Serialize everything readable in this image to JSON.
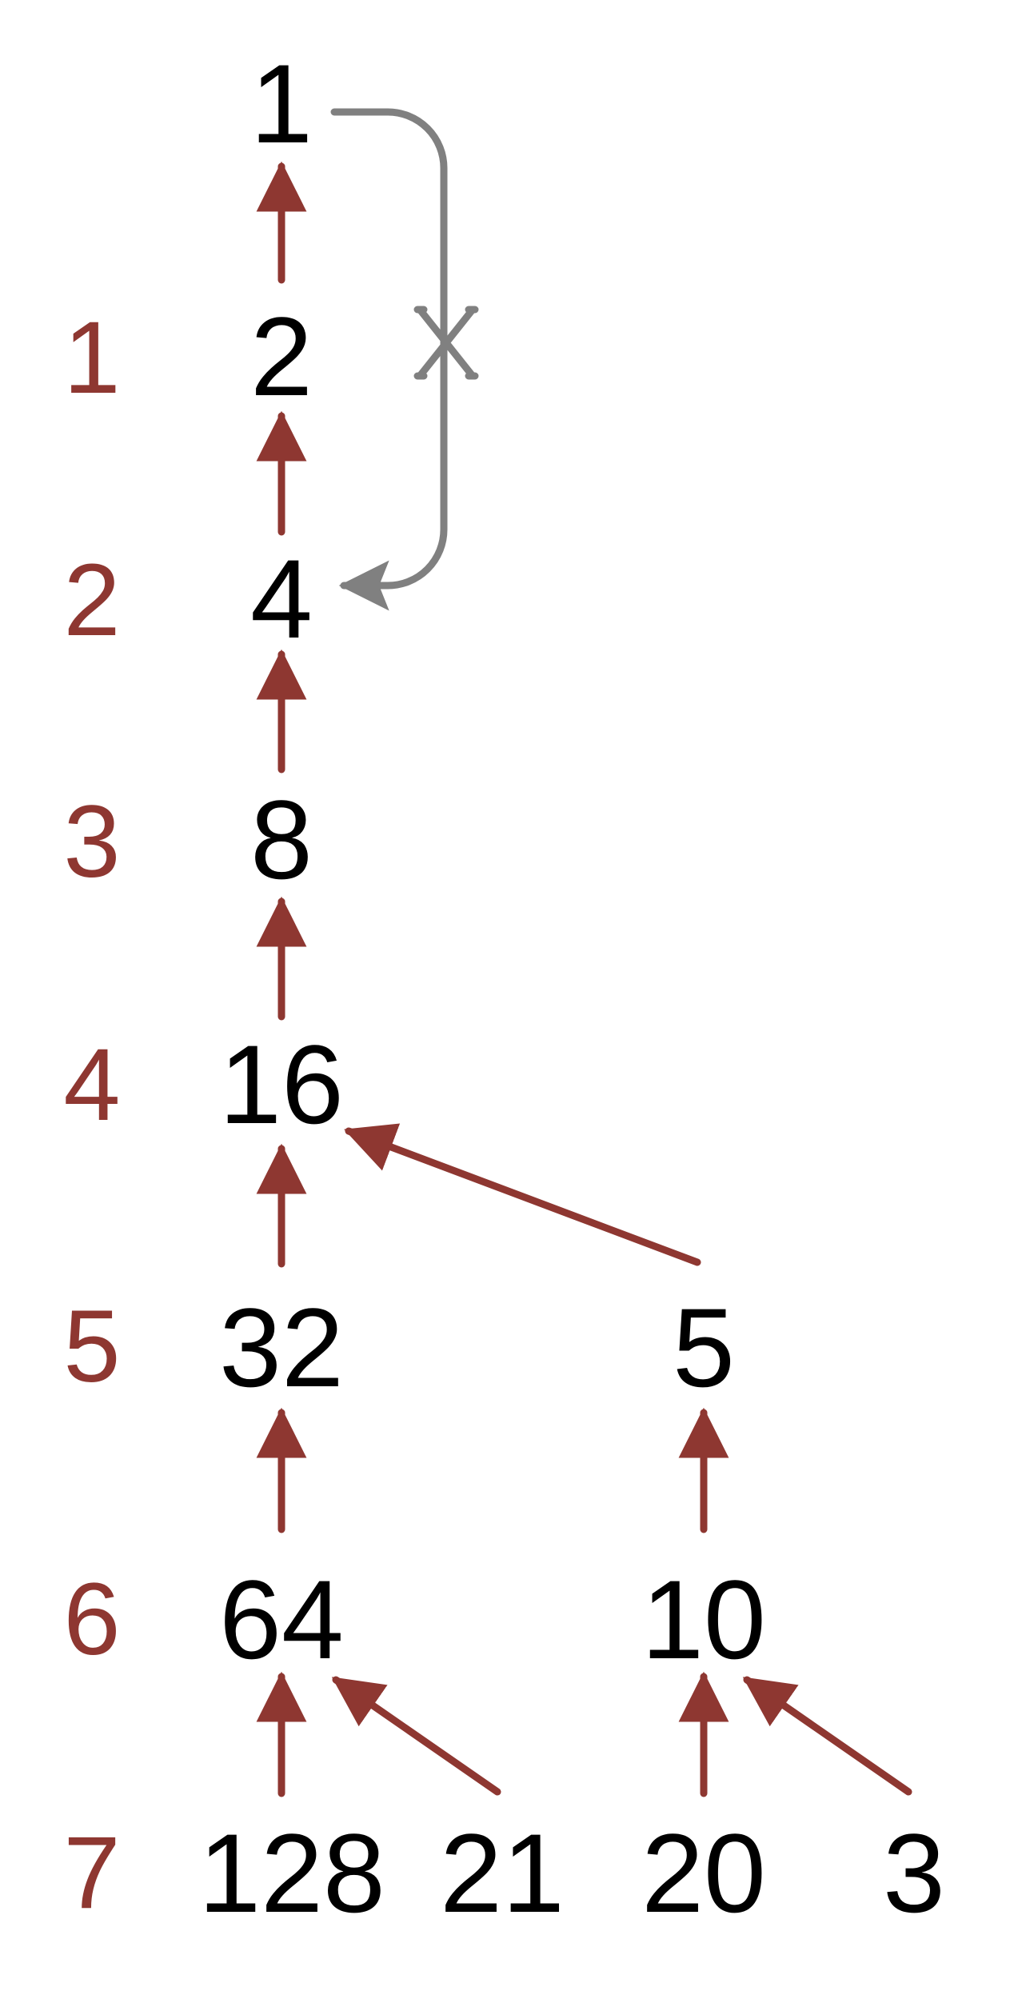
{
  "colors": {
    "edge": "#8e3731",
    "step_label": "#8e3731",
    "node_text": "#000000",
    "loop": "#808080"
  },
  "steps": [
    "1",
    "2",
    "3",
    "4",
    "5",
    "6",
    "7"
  ],
  "nodes": {
    "n1": "1",
    "n2": "2",
    "n4": "4",
    "n8": "8",
    "n16": "16",
    "n32": "32",
    "n5": "5",
    "n64": "64",
    "n10": "10",
    "n128": "128",
    "n21": "21",
    "n20": "20",
    "n3": "3"
  },
  "edges": [
    {
      "from": "2",
      "to": "1"
    },
    {
      "from": "4",
      "to": "2"
    },
    {
      "from": "8",
      "to": "4"
    },
    {
      "from": "16",
      "to": "8"
    },
    {
      "from": "32",
      "to": "16"
    },
    {
      "from": "5",
      "to": "16"
    },
    {
      "from": "64",
      "to": "32"
    },
    {
      "from": "10",
      "to": "5"
    },
    {
      "from": "128",
      "to": "64"
    },
    {
      "from": "21",
      "to": "64"
    },
    {
      "from": "20",
      "to": "10"
    },
    {
      "from": "3",
      "to": "10"
    }
  ],
  "loop": {
    "from": "1",
    "to": "4",
    "crossed": true,
    "mark": "X"
  }
}
